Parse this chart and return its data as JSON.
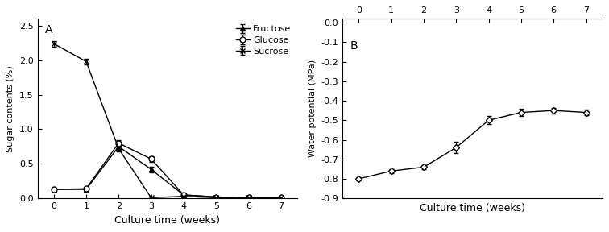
{
  "panel_A": {
    "title": "A",
    "xlabel": "Culture time (weeks)",
    "ylabel": "Sugar contents (%)",
    "weeks": [
      0,
      1,
      2,
      3,
      4,
      5,
      6,
      7
    ],
    "fructose": {
      "label": "Fructose",
      "y": [
        0.13,
        0.13,
        0.75,
        0.42,
        0.05,
        0.02,
        0.01,
        0.01
      ],
      "yerr": [
        0.01,
        0.01,
        0.05,
        0.04,
        0.01,
        0.005,
        0.005,
        0.005
      ],
      "marker": "^",
      "mfc": "black"
    },
    "glucose": {
      "label": "Glucose",
      "y": [
        0.13,
        0.14,
        0.8,
        0.57,
        0.05,
        0.02,
        0.01,
        0.01
      ],
      "yerr": [
        0.01,
        0.01,
        0.04,
        0.04,
        0.01,
        0.005,
        0.005,
        0.005
      ],
      "marker": "o",
      "mfc": "white"
    },
    "sucrose": {
      "label": "Sucrose",
      "y": [
        2.24,
        1.98,
        0.72,
        0.01,
        0.03,
        0.01,
        0.01,
        0.01
      ],
      "yerr": [
        0.04,
        0.04,
        0.04,
        0.005,
        0.01,
        0.005,
        0.005,
        0.005
      ],
      "marker": "x",
      "mfc": "black"
    },
    "ylim": [
      0,
      2.6
    ],
    "yticks": [
      0.0,
      0.5,
      1.0,
      1.5,
      2.0,
      2.5
    ]
  },
  "panel_B": {
    "title": "B",
    "xlabel": "Culture time (weeks)",
    "ylabel": "Water potential (MPa)",
    "weeks": [
      0,
      1,
      2,
      3,
      4,
      5,
      6,
      7
    ],
    "water_potential": {
      "y": [
        -0.8,
        -0.76,
        -0.74,
        -0.64,
        -0.5,
        -0.46,
        -0.45,
        -0.46
      ],
      "yerr": [
        0.01,
        0.01,
        0.01,
        0.03,
        0.02,
        0.02,
        0.015,
        0.015
      ],
      "marker": "D",
      "mfc": "white"
    },
    "ylim": [
      -0.9,
      0.02
    ],
    "yticks": [
      0.0,
      -0.1,
      -0.2,
      -0.3,
      -0.4,
      -0.5,
      -0.6,
      -0.7,
      -0.8,
      -0.9
    ]
  },
  "color": "#000000",
  "background_color": "#ffffff",
  "markersize": 5,
  "linewidth": 1.0,
  "capsize": 2,
  "elinewidth": 0.8,
  "font_size": 8,
  "label_font_size": 9
}
